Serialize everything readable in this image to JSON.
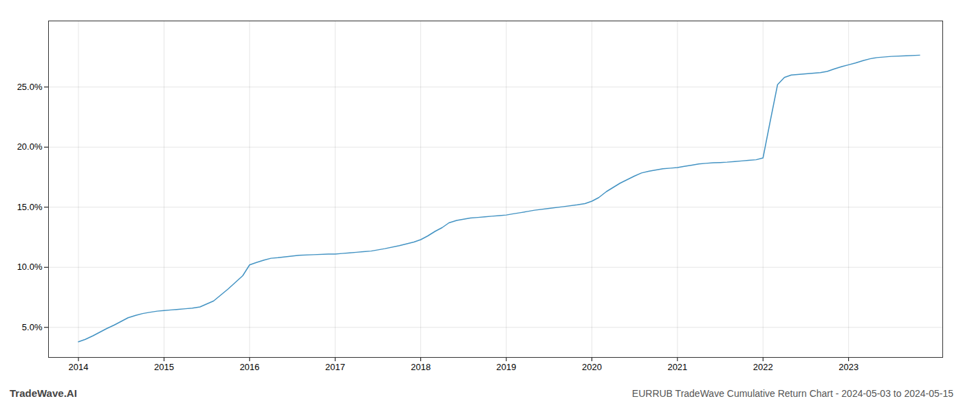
{
  "chart_data": {
    "type": "line",
    "title": "EURRUB TradeWave Cumulative Return Chart - 2024-05-03 to 2024-05-15",
    "annotations": [
      "TradeWave.AI"
    ],
    "color": "#4393c3",
    "grid": true,
    "x": [
      2014.0,
      2014.08,
      2014.17,
      2014.25,
      2014.33,
      2014.42,
      2014.5,
      2014.58,
      2014.67,
      2014.75,
      2014.83,
      2014.92,
      2015.0,
      2015.08,
      2015.17,
      2015.25,
      2015.33,
      2015.42,
      2015.58,
      2015.75,
      2015.92,
      2016.0,
      2016.08,
      2016.17,
      2016.25,
      2016.33,
      2016.58,
      2016.75,
      2016.92,
      2017.0,
      2017.08,
      2017.17,
      2017.25,
      2017.33,
      2017.42,
      2017.58,
      2017.75,
      2017.92,
      2018.0,
      2018.08,
      2018.17,
      2018.25,
      2018.33,
      2018.42,
      2018.5,
      2018.58,
      2018.67,
      2018.75,
      2018.83,
      2018.92,
      2019.0,
      2019.08,
      2019.17,
      2019.25,
      2019.33,
      2019.5,
      2019.67,
      2019.83,
      2019.92,
      2020.0,
      2020.08,
      2020.17,
      2020.33,
      2020.5,
      2020.58,
      2020.67,
      2020.75,
      2020.83,
      2020.92,
      2021.0,
      2021.08,
      2021.17,
      2021.25,
      2021.33,
      2021.42,
      2021.5,
      2021.58,
      2021.67,
      2021.75,
      2021.83,
      2021.92,
      2022.0,
      2022.08,
      2022.17,
      2022.25,
      2022.33,
      2022.5,
      2022.67,
      2022.75,
      2022.83,
      2022.92,
      2023.0,
      2023.08,
      2023.17,
      2023.25,
      2023.33,
      2023.5,
      2023.67,
      2023.83
    ],
    "values": [
      3.8,
      4.0,
      4.3,
      4.6,
      4.9,
      5.2,
      5.5,
      5.8,
      6.0,
      6.15,
      6.25,
      6.35,
      6.4,
      6.45,
      6.5,
      6.55,
      6.6,
      6.7,
      7.2,
      8.2,
      9.3,
      10.2,
      10.4,
      10.6,
      10.75,
      10.8,
      11.0,
      11.05,
      11.1,
      11.1,
      11.15,
      11.2,
      11.25,
      11.3,
      11.35,
      11.55,
      11.8,
      12.1,
      12.3,
      12.6,
      13.0,
      13.3,
      13.7,
      13.9,
      14.0,
      14.1,
      14.15,
      14.2,
      14.25,
      14.3,
      14.35,
      14.45,
      14.55,
      14.65,
      14.75,
      14.9,
      15.05,
      15.2,
      15.3,
      15.5,
      15.8,
      16.3,
      17.0,
      17.6,
      17.85,
      18.0,
      18.1,
      18.2,
      18.25,
      18.3,
      18.4,
      18.5,
      18.6,
      18.65,
      18.7,
      18.72,
      18.75,
      18.8,
      18.85,
      18.9,
      18.95,
      19.1,
      22.0,
      25.2,
      25.8,
      26.0,
      26.1,
      26.2,
      26.3,
      26.5,
      26.7,
      26.85,
      27.0,
      27.2,
      27.35,
      27.45,
      27.55,
      27.6,
      27.65
    ],
    "xlim": [
      2013.65,
      2024.1
    ],
    "ylim": [
      2.5,
      30.5
    ],
    "xticks": [
      2014,
      2015,
      2016,
      2017,
      2018,
      2019,
      2020,
      2021,
      2022,
      2023
    ],
    "yticks": [
      {
        "value": 5.0,
        "label": "5.0%"
      },
      {
        "value": 10.0,
        "label": "10.0%"
      },
      {
        "value": 15.0,
        "label": "15.0%"
      },
      {
        "value": 20.0,
        "label": "20.0%"
      },
      {
        "value": 25.0,
        "label": "25.0%"
      }
    ]
  }
}
